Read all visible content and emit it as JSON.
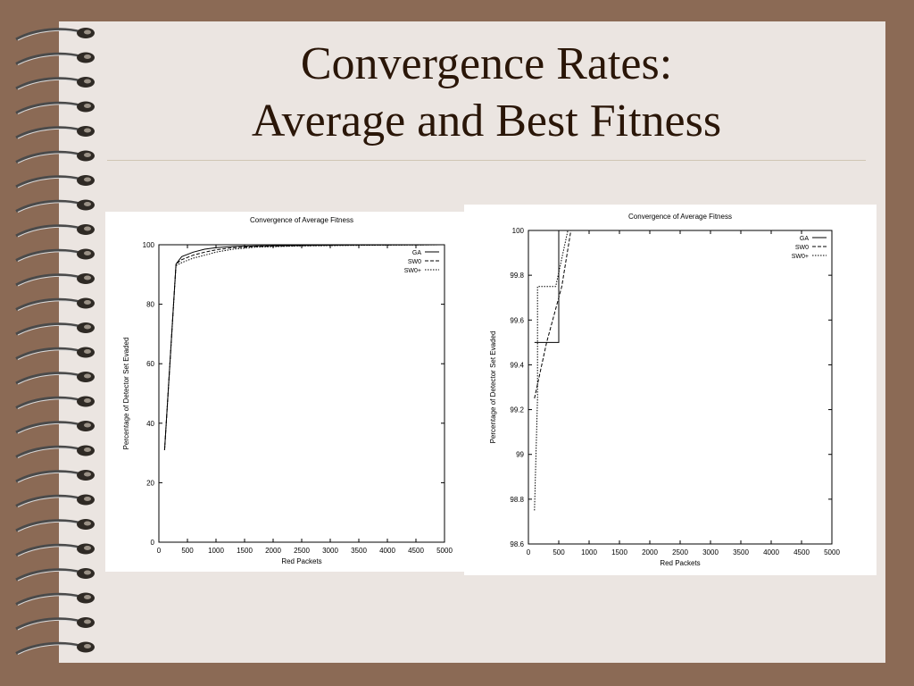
{
  "slide": {
    "title_line1": "Convergence Rates:",
    "title_line2": "Average and Best Fitness"
  },
  "colors": {
    "background": "#8b6a55",
    "paper": "#ebe5e1",
    "title": "#2a1608",
    "chart_bg": "#ffffff",
    "ink": "#000000"
  },
  "chart_data": [
    {
      "type": "line",
      "title": "Convergence of Average Fitness",
      "xlabel": "Red Packets",
      "ylabel": "Percentage of Detector Set Evaded",
      "xlim": [
        0,
        5000
      ],
      "ylim": [
        0,
        100
      ],
      "xticks": [
        0,
        500,
        1000,
        1500,
        2000,
        2500,
        3000,
        3500,
        4000,
        4500,
        5000
      ],
      "yticks": [
        0,
        20,
        40,
        60,
        80,
        100
      ],
      "ytick_labels": [
        "0",
        "20",
        "40",
        "60",
        "80",
        "100"
      ],
      "grid": false,
      "legend": "top-right",
      "series": [
        {
          "name": "GA",
          "dash": "solid",
          "x": [
            100,
            300,
            400,
            600,
            800,
            1000,
            1300,
            1700,
            2500,
            3500,
            5000
          ],
          "y": [
            31,
            93.5,
            96,
            97.5,
            98.5,
            99,
            99.4,
            99.6,
            99.8,
            99.9,
            100
          ]
        },
        {
          "name": "SW0",
          "dash": "dashed",
          "x": [
            100,
            300,
            400,
            600,
            800,
            1000,
            1300,
            1700,
            2500,
            3500,
            5000
          ],
          "y": [
            31,
            93.5,
            95,
            96.5,
            97.5,
            98.3,
            99,
            99.4,
            99.7,
            99.9,
            100
          ]
        },
        {
          "name": "SW0+",
          "dash": "dotted",
          "x": [
            100,
            300,
            400,
            600,
            800,
            1000,
            1300,
            1700,
            2500,
            3500,
            5000
          ],
          "y": [
            31,
            93,
            94,
            95.5,
            96.5,
            97.5,
            98.5,
            99.2,
            99.6,
            99.8,
            100
          ]
        }
      ]
    },
    {
      "type": "line",
      "title": "Convergence of Average Fitness",
      "xlabel": "Red Packets",
      "ylabel": "Percentage of Detector Set Evaded",
      "xlim": [
        0,
        5000
      ],
      "ylim": [
        98.6,
        100
      ],
      "xticks": [
        0,
        500,
        1000,
        1500,
        2000,
        2500,
        3000,
        3500,
        4000,
        4500,
        5000
      ],
      "yticks": [
        98.6,
        98.8,
        99,
        99.2,
        99.4,
        99.6,
        99.8,
        100
      ],
      "ytick_labels": [
        "98.6",
        "98.8",
        "99",
        "99.2",
        "99.4",
        "99.6",
        "99.8",
        "100"
      ],
      "grid": false,
      "legend": "top-right",
      "series": [
        {
          "name": "GA",
          "dash": "solid",
          "x": [
            100,
            500,
            500,
            5000
          ],
          "y": [
            99.5,
            99.5,
            100,
            100
          ]
        },
        {
          "name": "SW0",
          "dash": "dashed",
          "x": [
            100,
            300,
            550,
            700,
            5000
          ],
          "y": [
            99.25,
            99.5,
            99.75,
            100,
            100
          ]
        },
        {
          "name": "SW0+",
          "dash": "dotted",
          "x": [
            100,
            150,
            150,
            450,
            450,
            650,
            5000
          ],
          "y": [
            98.75,
            99.25,
            99.75,
            99.75,
            99.75,
            100,
            100
          ]
        }
      ]
    }
  ]
}
